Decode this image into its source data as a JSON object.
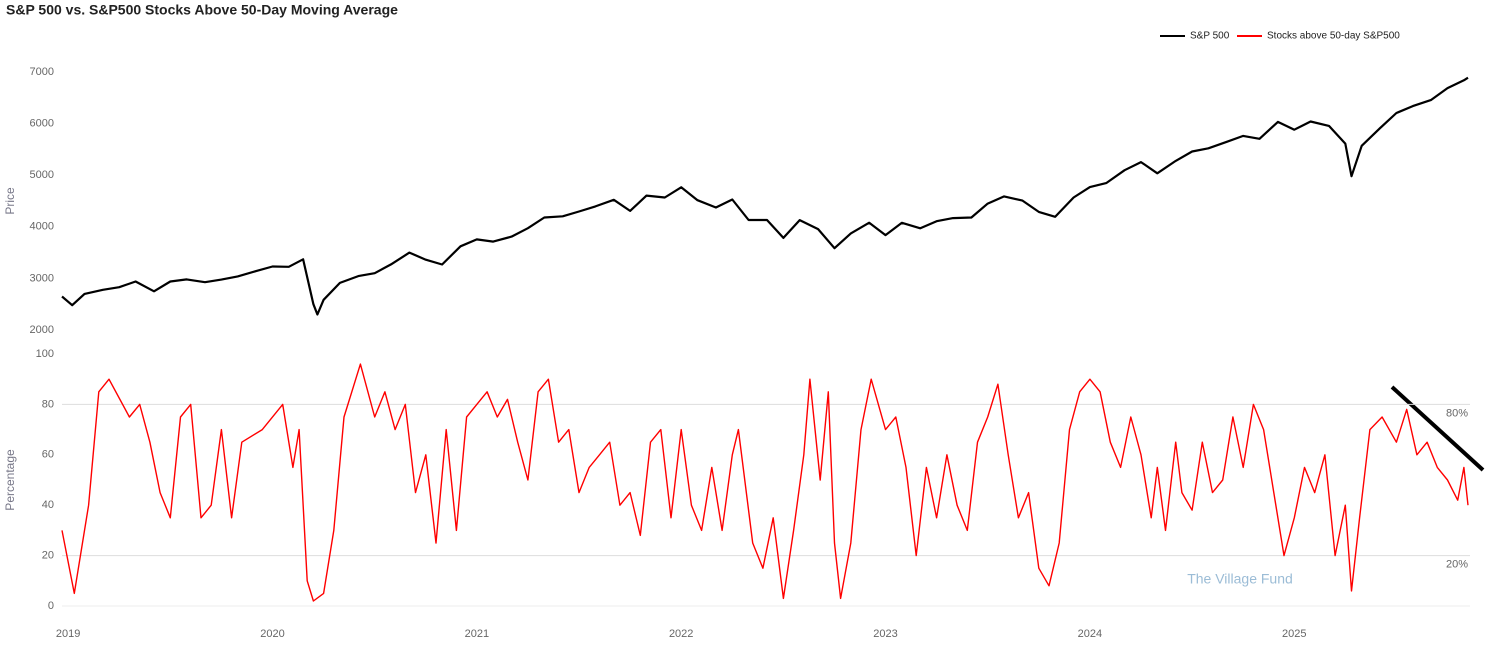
{
  "chart_data": [
    {
      "type": "line",
      "title": "S&P 500 vs. S&P500 Stocks Above 50-Day Moving Average",
      "ylabel": "Price",
      "xlim": [
        2018.97,
        2025.86
      ],
      "ylim": [
        2000,
        7000
      ],
      "yticks": [
        2000,
        3000,
        4000,
        5000,
        6000,
        7000
      ],
      "x": [
        2018.97,
        2019.02,
        2019.08,
        2019.17,
        2019.25,
        2019.33,
        2019.42,
        2019.5,
        2019.58,
        2019.67,
        2019.75,
        2019.83,
        2019.92,
        2020.0,
        2020.08,
        2020.15,
        2020.2,
        2020.22,
        2020.25,
        2020.33,
        2020.42,
        2020.5,
        2020.58,
        2020.67,
        2020.75,
        2020.83,
        2020.92,
        2021.0,
        2021.08,
        2021.17,
        2021.25,
        2021.33,
        2021.42,
        2021.5,
        2021.58,
        2021.67,
        2021.75,
        2021.83,
        2021.92,
        2022.0,
        2022.08,
        2022.17,
        2022.25,
        2022.33,
        2022.42,
        2022.5,
        2022.58,
        2022.67,
        2022.75,
        2022.83,
        2022.92,
        2023.0,
        2023.08,
        2023.17,
        2023.25,
        2023.33,
        2023.42,
        2023.5,
        2023.58,
        2023.67,
        2023.75,
        2023.83,
        2023.92,
        2024.0,
        2024.08,
        2024.17,
        2024.25,
        2024.33,
        2024.42,
        2024.5,
        2024.58,
        2024.67,
        2024.75,
        2024.83,
        2024.92,
        2025.0,
        2025.08,
        2025.17,
        2025.25,
        2025.28,
        2025.33,
        2025.42,
        2025.5,
        2025.58,
        2025.67,
        2025.75,
        2025.83,
        2025.85
      ],
      "series": [
        {
          "name": "S&P 500",
          "color": "#000000",
          "values": [
            2650,
            2480,
            2700,
            2780,
            2830,
            2940,
            2750,
            2940,
            2980,
            2926,
            2977,
            3038,
            3141,
            3231,
            3225,
            3370,
            2500,
            2300,
            2585,
            2912,
            3044,
            3100,
            3271,
            3500,
            3363,
            3270,
            3622,
            3756,
            3714,
            3811,
            3973,
            4181,
            4204,
            4297,
            4395,
            4523,
            4308,
            4605,
            4567,
            4766,
            4516,
            4374,
            4530,
            4132,
            4132,
            3785,
            4130,
            3955,
            3586,
            3872,
            4080,
            3840,
            4077,
            3970,
            4109,
            4169,
            4180,
            4450,
            4589,
            4508,
            4288,
            4194,
            4568,
            4770,
            4846,
            5096,
            5254,
            5036,
            5278,
            5460,
            5522,
            5648,
            5762,
            5705,
            6032,
            5882,
            6040,
            5955,
            5612,
            4980,
            5569,
            5912,
            6205,
            6339,
            6460,
            6688,
            6840,
            6890
          ]
        }
      ]
    },
    {
      "type": "line",
      "ylabel": "Percentage",
      "xlim": [
        2018.97,
        2025.86
      ],
      "xticks": [
        2019,
        2020,
        2021,
        2022,
        2023,
        2024,
        2025
      ],
      "ylim": [
        0,
        100
      ],
      "yticks": [
        0,
        20,
        40,
        60,
        80,
        100
      ],
      "hlines": [
        80,
        20
      ],
      "annotations": [
        "80%",
        "20%"
      ],
      "watermark": "The Village Fund",
      "x": [
        2018.97,
        2019.03,
        2019.1,
        2019.15,
        2019.2,
        2019.3,
        2019.35,
        2019.4,
        2019.45,
        2019.5,
        2019.55,
        2019.6,
        2019.65,
        2019.7,
        2019.75,
        2019.8,
        2019.85,
        2019.95,
        2020.05,
        2020.1,
        2020.13,
        2020.17,
        2020.2,
        2020.25,
        2020.3,
        2020.35,
        2020.43,
        2020.5,
        2020.55,
        2020.6,
        2020.65,
        2020.7,
        2020.75,
        2020.8,
        2020.85,
        2020.9,
        2020.95,
        2021.0,
        2021.05,
        2021.1,
        2021.15,
        2021.2,
        2021.25,
        2021.3,
        2021.35,
        2021.4,
        2021.45,
        2021.5,
        2021.55,
        2021.6,
        2021.65,
        2021.7,
        2021.75,
        2021.8,
        2021.85,
        2021.9,
        2021.95,
        2022.0,
        2022.05,
        2022.1,
        2022.15,
        2022.2,
        2022.25,
        2022.28,
        2022.35,
        2022.4,
        2022.45,
        2022.5,
        2022.55,
        2022.6,
        2022.63,
        2022.68,
        2022.72,
        2022.75,
        2022.78,
        2022.83,
        2022.88,
        2022.93,
        2023.0,
        2023.05,
        2023.1,
        2023.15,
        2023.2,
        2023.25,
        2023.3,
        2023.35,
        2023.4,
        2023.45,
        2023.5,
        2023.55,
        2023.6,
        2023.65,
        2023.7,
        2023.75,
        2023.8,
        2023.85,
        2023.9,
        2023.95,
        2024.0,
        2024.05,
        2024.1,
        2024.15,
        2024.2,
        2024.25,
        2024.3,
        2024.33,
        2024.37,
        2024.42,
        2024.45,
        2024.5,
        2024.55,
        2024.6,
        2024.65,
        2024.7,
        2024.75,
        2024.8,
        2024.85,
        2024.9,
        2024.95,
        2025.0,
        2025.05,
        2025.1,
        2025.15,
        2025.2,
        2025.25,
        2025.28,
        2025.32,
        2025.37,
        2025.43,
        2025.5,
        2025.55,
        2025.6,
        2025.65,
        2025.7,
        2025.75,
        2025.8,
        2025.83,
        2025.85
      ],
      "series": [
        {
          "name": "Stocks above 50-day S&P500",
          "color": "#ff0000",
          "values": [
            30,
            5,
            40,
            85,
            90,
            75,
            80,
            65,
            45,
            35,
            75,
            80,
            35,
            40,
            70,
            35,
            65,
            70,
            80,
            55,
            70,
            10,
            2,
            5,
            30,
            75,
            96,
            75,
            85,
            70,
            80,
            45,
            60,
            25,
            70,
            30,
            75,
            80,
            85,
            75,
            82,
            65,
            50,
            85,
            90,
            65,
            70,
            45,
            55,
            60,
            65,
            40,
            45,
            28,
            65,
            70,
            35,
            70,
            40,
            30,
            55,
            30,
            60,
            70,
            25,
            15,
            35,
            3,
            30,
            60,
            90,
            50,
            85,
            25,
            3,
            25,
            70,
            90,
            70,
            75,
            55,
            20,
            55,
            35,
            60,
            40,
            30,
            65,
            75,
            88,
            60,
            35,
            45,
            15,
            8,
            25,
            70,
            85,
            90,
            85,
            65,
            55,
            75,
            60,
            35,
            55,
            30,
            65,
            45,
            38,
            65,
            45,
            50,
            75,
            55,
            80,
            70,
            45,
            20,
            35,
            55,
            45,
            60,
            20,
            40,
            6,
            35,
            70,
            75,
            65,
            78,
            60,
            65,
            55,
            50,
            42,
            55,
            40
          ]
        }
      ]
    }
  ]
}
